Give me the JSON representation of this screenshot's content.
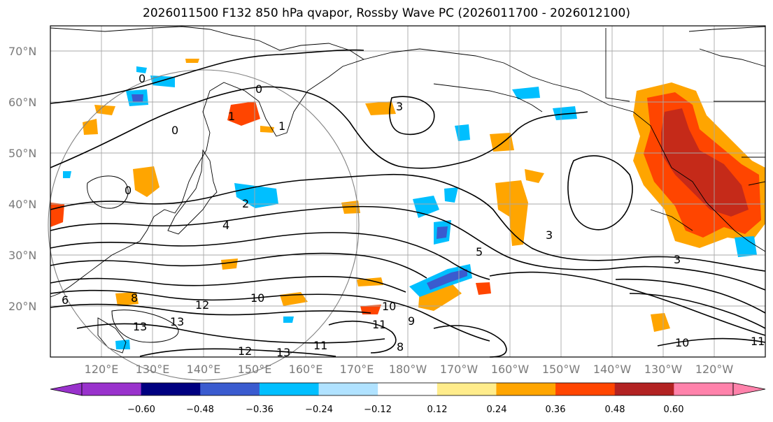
{
  "title": "2026011500 F132 850 hPa qvapor, Rossby Wave PC (2026011700 - 2026012100)",
  "lat_labels": [
    "70°N",
    "60°N",
    "50°N",
    "40°N",
    "30°N",
    "20°N"
  ],
  "lon_labels": [
    "120°E",
    "130°E",
    "140°E",
    "150°E",
    "160°E",
    "170°E",
    "180°W",
    "170°W",
    "160°W",
    "150°W",
    "140°W",
    "130°W",
    "120°W"
  ],
  "contour_labels": [
    "0",
    "0",
    "0",
    "0",
    "1",
    "1",
    "2",
    "3",
    "3",
    "3",
    "4",
    "5",
    "6",
    "8",
    "8",
    "9",
    "10",
    "10",
    "10",
    "11",
    "11",
    "11",
    "12",
    "12",
    "13",
    "13",
    "13"
  ],
  "colorbar": {
    "ticks": [
      "−0.60",
      "−0.48",
      "−0.36",
      "−0.24",
      "−0.12",
      "0.12",
      "0.24",
      "0.36",
      "0.48",
      "0.60"
    ],
    "colors": [
      "#9932cc",
      "#000080",
      "#3a5bcf",
      "#00bfff",
      "#b0e2ff",
      "#ffffff",
      "#ffec8b",
      "#ffa500",
      "#ff4500",
      "#b22222",
      "#ff82ab",
      "#ff82ab"
    ]
  },
  "chart_data": {
    "type": "heatmap",
    "title": "2026011500 F132 850 hPa qvapor, Rossby Wave PC (2026011700 - 2026012100)",
    "lat_range": [
      10,
      75
    ],
    "lon_range": [
      110,
      250
    ],
    "lat_ticks": [
      70,
      60,
      50,
      40,
      30,
      20
    ],
    "lon_ticks": [
      120,
      130,
      140,
      150,
      160,
      170,
      180,
      190,
      200,
      210,
      220,
      230,
      240
    ],
    "color_levels": [
      -0.6,
      -0.48,
      -0.36,
      -0.24,
      -0.12,
      0.12,
      0.24,
      0.36,
      0.48,
      0.6
    ],
    "contour_values": [
      0,
      1,
      2,
      3,
      4,
      5,
      6,
      8,
      9,
      10,
      11,
      12,
      13
    ],
    "grid": true
  }
}
